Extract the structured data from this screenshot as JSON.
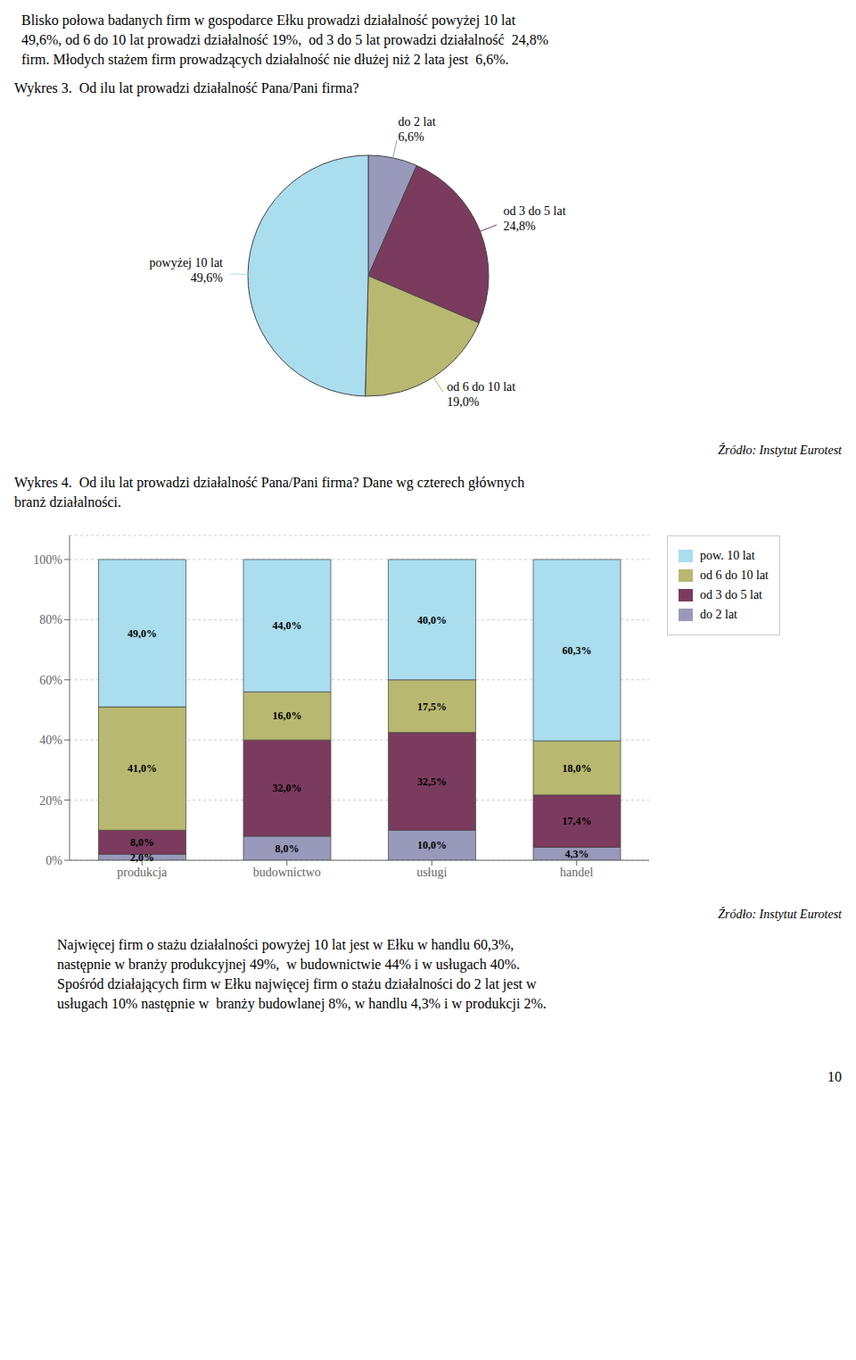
{
  "chart_data": [
    {
      "type": "pie",
      "title": "Wykres 3.  Od ilu lat prowadzi działalność Pana/Pani firma?",
      "categories": [
        "do 2 lat",
        "od 3 do 5 lat",
        "od 6 do 10 lat",
        "powyżej 10 lat"
      ],
      "values": [
        6.6,
        24.8,
        19.0,
        49.6
      ],
      "value_labels": [
        "6,6%",
        "24,8%",
        "19,0%",
        "49,6%"
      ],
      "colors": [
        "#9999bb",
        "#7b3b5e",
        "#b8b870",
        "#aaddee"
      ],
      "data_labels": true,
      "annotations": [
        "Blisko połowa badanych firm w gospodarce Ełku prowadzi działalność powyżej 10 lat\n49,6%, od 6 do 10 lat prowadzi działalność 19%,  od 3 do 5 lat prowadzi działalność  24,8%\nfirm. Młodych stażem firm prowadzących działalność nie dłużej niż 2 lata jest  6,6%.",
        "Źródło: Instytut Eurotest"
      ]
    },
    {
      "type": "bar",
      "title": "Wykres 4.  Od ilu lat prowadzi działalność Pana/Pani firma? Dane wg czterech głównych\nbranż działalności.",
      "categories": [
        "produkcja",
        "budownictwo",
        "usługi",
        "handel"
      ],
      "series": [
        {
          "name": "do 2 lat",
          "color": "#9999bb",
          "values": [
            2.0,
            8.0,
            10.0,
            4.3
          ],
          "value_labels": [
            "2,0%",
            "8,0%",
            "10,0%",
            "4,3%"
          ]
        },
        {
          "name": "od 3 do 5 lat",
          "color": "#7b3b5e",
          "values": [
            8.0,
            32.0,
            32.5,
            17.4
          ],
          "value_labels": [
            "8,0%",
            "32,0%",
            "32,5%",
            "17,4%"
          ]
        },
        {
          "name": "od 6 do 10 lat",
          "color": "#b8b870",
          "values": [
            41.0,
            16.0,
            17.5,
            18.0
          ],
          "value_labels": [
            "41,0%",
            "16,0%",
            "17,5%",
            "18,0%"
          ]
        },
        {
          "name": "pow. 10 lat",
          "color": "#aaddee",
          "values": [
            49.0,
            44.0,
            40.0,
            60.3
          ],
          "value_labels": [
            "49,0%",
            "44,0%",
            "40,0%",
            "60,3%"
          ]
        }
      ],
      "stacked": true,
      "data_labels": true,
      "ylim": [
        0,
        108
      ],
      "yticks": [
        {
          "value": 0,
          "label": "0%"
        },
        {
          "value": 20,
          "label": "20%"
        },
        {
          "value": 40,
          "label": "40%"
        },
        {
          "value": 60,
          "label": "60%"
        },
        {
          "value": 80,
          "label": "80%"
        },
        {
          "value": 100,
          "label": "100%"
        }
      ],
      "grid": true,
      "legend": "upper right",
      "annotations": [
        "Źródło: Instytut Eurotest",
        "Najwięcej firm o stażu działalności powyżej 10 lat jest w Ełku w handlu 60,3%,\nnastępnie w branży produkcyjnej 49%,  w budownictwie 44% i w usługach 40%.",
        "Spośród działających firm w Ełku najwięcej firm o stażu działalności do 2 lat jest w\nusługach 10% następnie w  branży budowlanej 8%, w handlu 4,3% i w produkcji 2%.",
        "10"
      ]
    }
  ]
}
